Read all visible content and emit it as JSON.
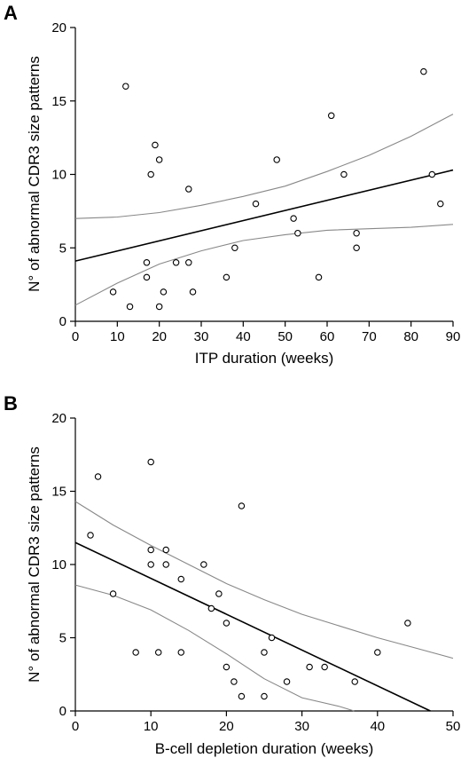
{
  "chart_data": [
    {
      "type": "scatter",
      "panel": "A",
      "xlabel": "ITP duration (weeks)",
      "ylabel": "N° of abnormal CDR3 size patterns",
      "xlim": [
        0,
        90
      ],
      "ylim": [
        0,
        20
      ],
      "xticks": [
        0,
        10,
        20,
        30,
        40,
        50,
        60,
        70,
        80,
        90
      ],
      "yticks": [
        0,
        5,
        10,
        15,
        20
      ],
      "grid": false,
      "points": [
        {
          "x": 9,
          "y": 2
        },
        {
          "x": 12,
          "y": 16
        },
        {
          "x": 13,
          "y": 1
        },
        {
          "x": 17,
          "y": 4
        },
        {
          "x": 17,
          "y": 3
        },
        {
          "x": 18,
          "y": 10
        },
        {
          "x": 19,
          "y": 12
        },
        {
          "x": 20,
          "y": 11
        },
        {
          "x": 20,
          "y": 1
        },
        {
          "x": 21,
          "y": 2
        },
        {
          "x": 24,
          "y": 4
        },
        {
          "x": 27,
          "y": 4
        },
        {
          "x": 27,
          "y": 9
        },
        {
          "x": 28,
          "y": 2
        },
        {
          "x": 36,
          "y": 3
        },
        {
          "x": 38,
          "y": 5
        },
        {
          "x": 43,
          "y": 8
        },
        {
          "x": 48,
          "y": 11
        },
        {
          "x": 52,
          "y": 7
        },
        {
          "x": 53,
          "y": 6
        },
        {
          "x": 58,
          "y": 3
        },
        {
          "x": 61,
          "y": 14
        },
        {
          "x": 64,
          "y": 10
        },
        {
          "x": 67,
          "y": 6
        },
        {
          "x": 67,
          "y": 5
        },
        {
          "x": 83,
          "y": 17
        },
        {
          "x": 85,
          "y": 10
        },
        {
          "x": 87,
          "y": 8
        }
      ],
      "regression": {
        "x": [
          0,
          90
        ],
        "y": [
          4.1,
          10.3
        ]
      },
      "ci_upper": {
        "x": [
          0,
          10,
          20,
          30,
          40,
          50,
          60,
          70,
          80,
          90
        ],
        "y": [
          7.0,
          7.1,
          7.4,
          7.9,
          8.5,
          9.2,
          10.2,
          11.3,
          12.6,
          14.1
        ]
      },
      "ci_lower": {
        "x": [
          0,
          10,
          20,
          30,
          40,
          50,
          60,
          70,
          80,
          90
        ],
        "y": [
          1.1,
          2.6,
          3.9,
          4.8,
          5.5,
          5.9,
          6.2,
          6.3,
          6.4,
          6.6
        ]
      }
    },
    {
      "type": "scatter",
      "panel": "B",
      "xlabel": "B-cell depletion duration (weeks)",
      "ylabel": "N° of abnormal CDR3 size patterns",
      "xlim": [
        0,
        50
      ],
      "ylim": [
        0,
        20
      ],
      "xticks": [
        0,
        10,
        20,
        30,
        40,
        50
      ],
      "yticks": [
        0,
        5,
        10,
        15,
        20
      ],
      "grid": false,
      "points": [
        {
          "x": 2,
          "y": 12
        },
        {
          "x": 3,
          "y": 16
        },
        {
          "x": 5,
          "y": 8
        },
        {
          "x": 8,
          "y": 4
        },
        {
          "x": 10,
          "y": 17
        },
        {
          "x": 10,
          "y": 11
        },
        {
          "x": 10,
          "y": 10
        },
        {
          "x": 11,
          "y": 4
        },
        {
          "x": 12,
          "y": 11
        },
        {
          "x": 12,
          "y": 10
        },
        {
          "x": 14,
          "y": 9
        },
        {
          "x": 14,
          "y": 4
        },
        {
          "x": 17,
          "y": 10
        },
        {
          "x": 18,
          "y": 7
        },
        {
          "x": 19,
          "y": 8
        },
        {
          "x": 20,
          "y": 6
        },
        {
          "x": 20,
          "y": 3
        },
        {
          "x": 21,
          "y": 2
        },
        {
          "x": 22,
          "y": 14
        },
        {
          "x": 22,
          "y": 1
        },
        {
          "x": 25,
          "y": 4
        },
        {
          "x": 25,
          "y": 1
        },
        {
          "x": 26,
          "y": 5
        },
        {
          "x": 28,
          "y": 2
        },
        {
          "x": 31,
          "y": 3
        },
        {
          "x": 33,
          "y": 3
        },
        {
          "x": 37,
          "y": 2
        },
        {
          "x": 40,
          "y": 4
        },
        {
          "x": 44,
          "y": 6
        }
      ],
      "regression": {
        "x": [
          0,
          47
        ],
        "y": [
          11.5,
          0
        ]
      },
      "ci_upper": {
        "x": [
          0,
          5,
          10,
          15,
          20,
          25,
          30,
          35,
          40,
          45,
          50
        ],
        "y": [
          14.3,
          12.7,
          11.3,
          10.0,
          8.7,
          7.6,
          6.6,
          5.8,
          5.0,
          4.3,
          3.6
        ]
      },
      "ci_lower": {
        "x": [
          0,
          5,
          10,
          15,
          20,
          25,
          30,
          35,
          36.9
        ],
        "y": [
          8.6,
          7.9,
          6.9,
          5.5,
          3.9,
          2.2,
          0.9,
          0.3,
          0
        ]
      }
    }
  ]
}
